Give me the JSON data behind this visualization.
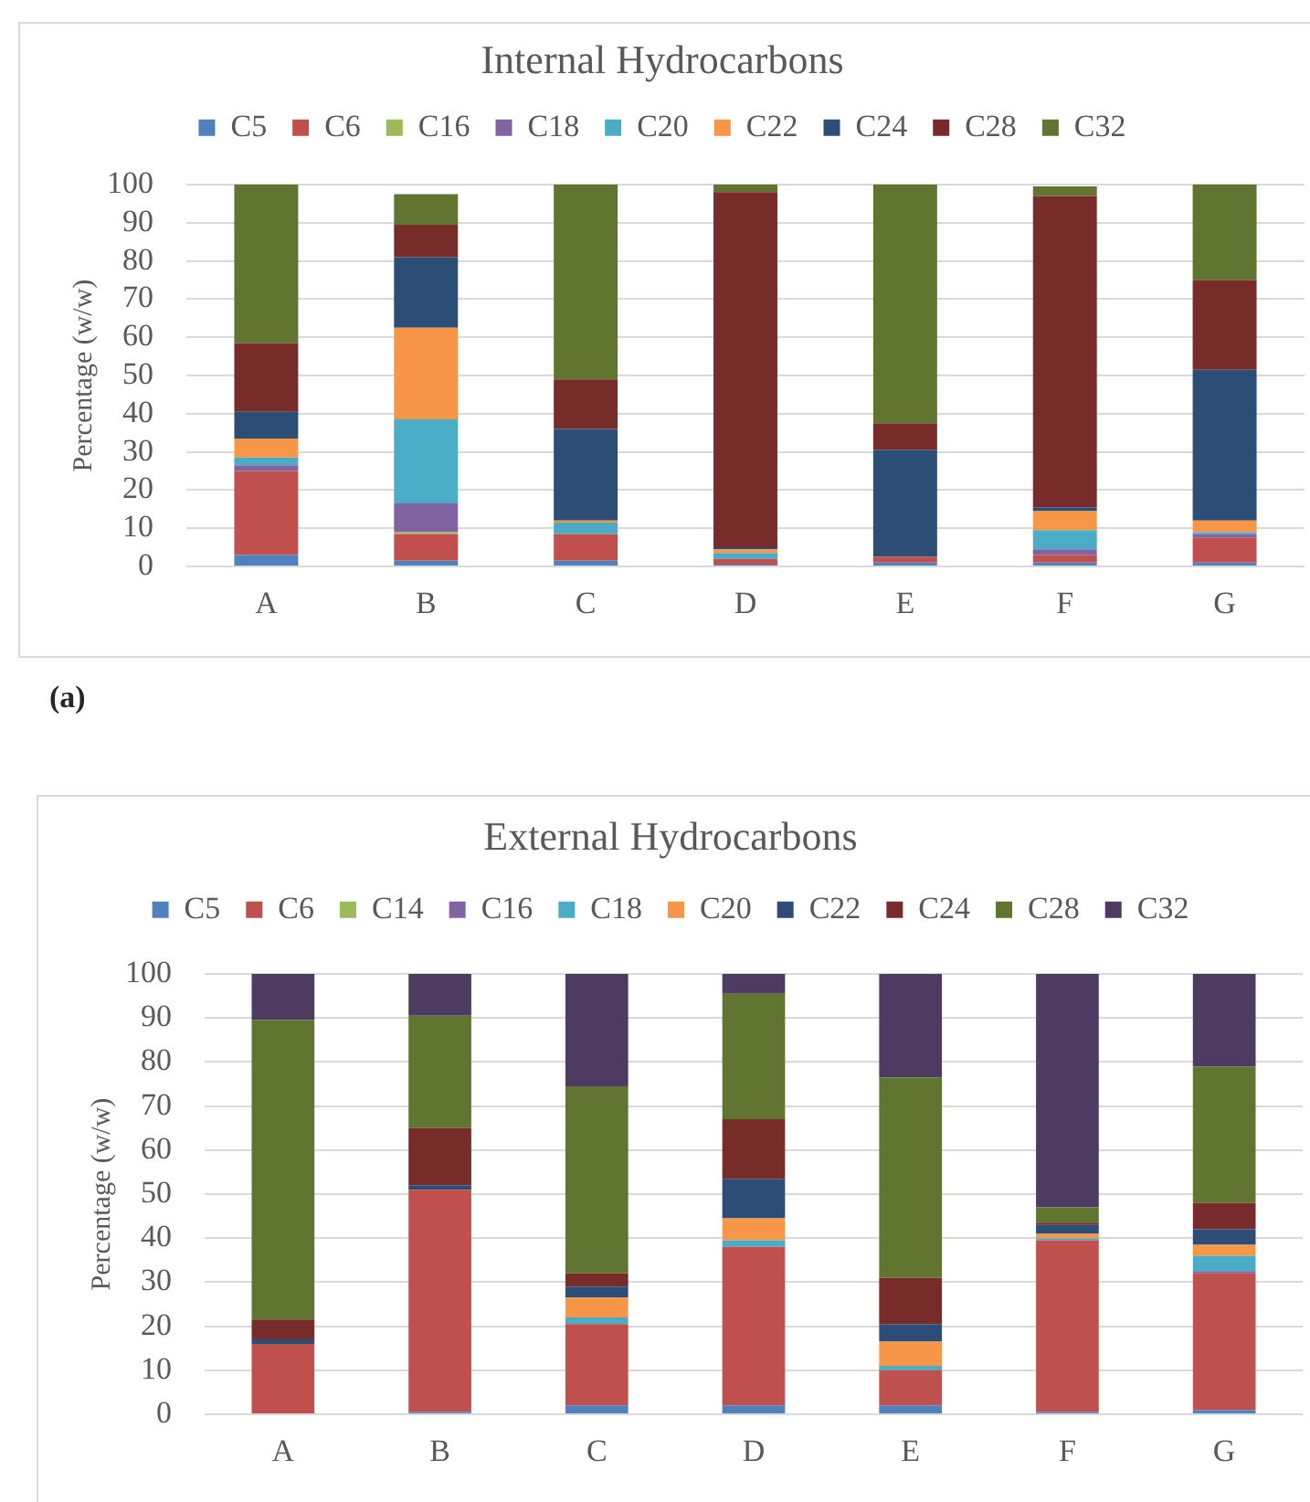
{
  "chart_data": [
    {
      "type": "bar",
      "title": "Internal Hydrocarbons",
      "ylabel": "Percentage (w/w)",
      "stacked": true,
      "categories": [
        "A",
        "B",
        "C",
        "D",
        "E",
        "F",
        "G"
      ],
      "series": [
        {
          "name": "C5",
          "color": "#4f81bd",
          "values": [
            3,
            1.5,
            1.5,
            0.5,
            1,
            1,
            1
          ]
        },
        {
          "name": "C6",
          "color": "#c0504d",
          "values": [
            22,
            7,
            7,
            1.5,
            1.5,
            2,
            6.5
          ]
        },
        {
          "name": "C16",
          "color": "#9bbb59",
          "values": [
            0,
            0.5,
            0,
            0,
            0,
            0,
            0
          ]
        },
        {
          "name": "C18",
          "color": "#8064a2",
          "values": [
            1.5,
            7.5,
            0,
            0,
            0,
            1.5,
            1
          ]
        },
        {
          "name": "C20",
          "color": "#4bacc6",
          "values": [
            2,
            22,
            3,
            1.5,
            0,
            5,
            0.5
          ]
        },
        {
          "name": "C22",
          "color": "#f79646",
          "values": [
            5,
            24,
            0.5,
            1,
            0,
            5,
            3
          ]
        },
        {
          "name": "C24",
          "color": "#2c4d75",
          "values": [
            7,
            18.5,
            24,
            0.5,
            28,
            1,
            39.5
          ]
        },
        {
          "name": "C28",
          "color": "#772c2a",
          "values": [
            18,
            8.5,
            13,
            93,
            7,
            81.5,
            23.5
          ]
        },
        {
          "name": "C32",
          "color": "#5f7530",
          "values": [
            41.5,
            8,
            51,
            2,
            62.5,
            2.5,
            25
          ]
        }
      ],
      "ylim": [
        0,
        100
      ],
      "yticks": [
        0,
        10,
        20,
        30,
        40,
        50,
        60,
        70,
        80,
        90,
        100
      ],
      "grid": "y",
      "legend": "top",
      "annotations": [
        "(a)"
      ]
    },
    {
      "type": "bar",
      "title": "External Hydrocarbons",
      "ylabel": "Percentage (w/w)",
      "stacked": true,
      "categories": [
        "A",
        "B",
        "C",
        "D",
        "E",
        "F",
        "G"
      ],
      "series": [
        {
          "name": "C5",
          "color": "#4f81bd",
          "values": [
            0,
            0.5,
            2,
            2,
            2,
            0.5,
            1
          ]
        },
        {
          "name": "C6",
          "color": "#c0504d",
          "values": [
            16,
            50.5,
            18.5,
            36,
            8,
            39,
            31
          ]
        },
        {
          "name": "C14",
          "color": "#9bbb59",
          "values": [
            0,
            0,
            0,
            0,
            0,
            0,
            0
          ]
        },
        {
          "name": "C16",
          "color": "#8064a2",
          "values": [
            0,
            0,
            0,
            0,
            0,
            0,
            0.5
          ]
        },
        {
          "name": "C18",
          "color": "#4bacc6",
          "values": [
            0,
            0,
            1.5,
            1.5,
            1,
            0.5,
            3.5
          ]
        },
        {
          "name": "C20",
          "color": "#f79646",
          "values": [
            0,
            0,
            4.5,
            5,
            5.5,
            1,
            2.5
          ]
        },
        {
          "name": "C22",
          "color": "#2c4d75",
          "values": [
            1,
            1,
            2.5,
            9,
            4,
            2,
            3.5
          ]
        },
        {
          "name": "C24",
          "color": "#772c2a",
          "values": [
            4.5,
            13,
            3,
            13.5,
            10.5,
            0.5,
            6
          ]
        },
        {
          "name": "C28",
          "color": "#5f7530",
          "values": [
            68,
            25.5,
            42.5,
            28.5,
            45.5,
            3.5,
            31
          ]
        },
        {
          "name": "C32",
          "color": "#4d3b62",
          "values": [
            10.5,
            9.5,
            25.5,
            4.5,
            23.5,
            53,
            21
          ]
        }
      ],
      "ylim": [
        0,
        100
      ],
      "yticks": [
        0,
        10,
        20,
        30,
        40,
        50,
        60,
        70,
        80,
        90,
        100
      ],
      "grid": "y",
      "legend": "top"
    }
  ]
}
